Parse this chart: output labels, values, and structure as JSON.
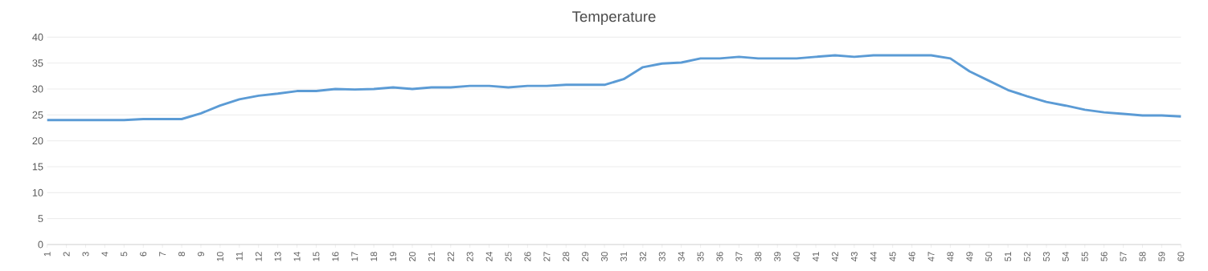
{
  "chart_data": {
    "type": "line",
    "title": "Temperature",
    "categories": [
      "1",
      "2",
      "3",
      "4",
      "5",
      "6",
      "7",
      "8",
      "9",
      "10",
      "11",
      "12",
      "13",
      "14",
      "15",
      "16",
      "17",
      "18",
      "19",
      "20",
      "21",
      "22",
      "23",
      "24",
      "25",
      "26",
      "27",
      "28",
      "29",
      "30",
      "31",
      "32",
      "33",
      "34",
      "35",
      "36",
      "37",
      "38",
      "39",
      "40",
      "41",
      "42",
      "43",
      "44",
      "45",
      "46",
      "47",
      "48",
      "49",
      "50",
      "51",
      "52",
      "53",
      "54",
      "55",
      "56",
      "57",
      "58",
      "59",
      "60"
    ],
    "series": [
      {
        "color": "#5b9bd5",
        "values": [
          24.0,
          24.0,
          24.0,
          24.0,
          24.0,
          24.2,
          24.2,
          24.2,
          25.3,
          26.8,
          28.0,
          28.7,
          29.1,
          29.6,
          29.6,
          30.0,
          29.9,
          30.0,
          30.3,
          30.0,
          30.3,
          30.3,
          30.6,
          30.6,
          30.3,
          30.6,
          30.6,
          30.8,
          30.8,
          30.8,
          31.9,
          34.2,
          34.9,
          35.1,
          35.9,
          35.9,
          36.2,
          35.9,
          35.9,
          35.9,
          36.2,
          36.5,
          36.2,
          36.5,
          36.5,
          36.5,
          36.5,
          35.9,
          33.4,
          31.6,
          29.8,
          28.6,
          27.5,
          26.8,
          26.0,
          25.5,
          25.2,
          24.9,
          24.9,
          24.7
        ]
      }
    ],
    "ylim": [
      0,
      40
    ],
    "yticks": [
      0,
      5,
      10,
      15,
      20,
      25,
      30,
      35,
      40
    ],
    "grid": "y",
    "marker": "none",
    "line_style": "solid",
    "legend": false
  }
}
